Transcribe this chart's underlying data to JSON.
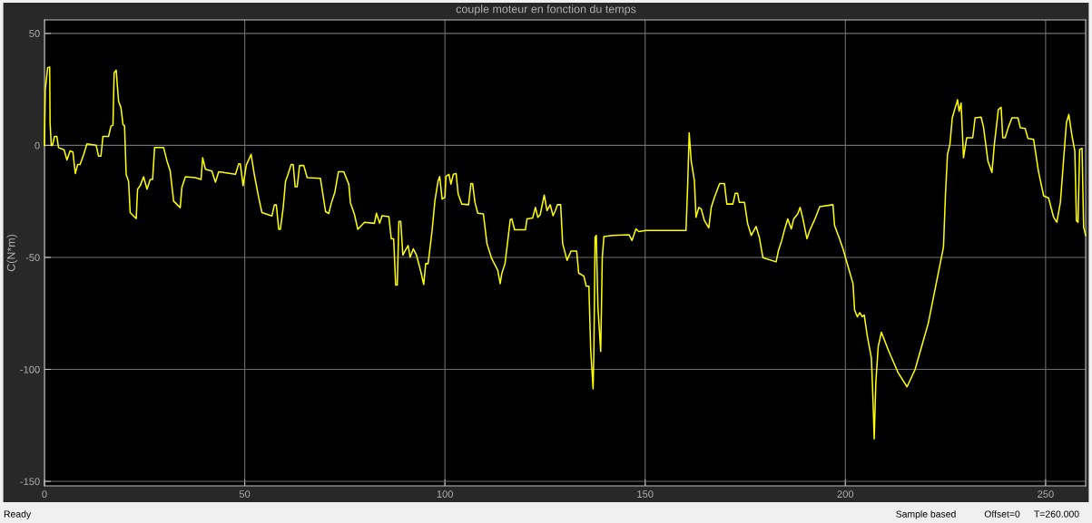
{
  "chart_data": {
    "type": "line",
    "title": "couple moteur en fonction du temps",
    "ylabel": "C(N*m)",
    "annotations": [
      "Ready",
      "Sample based",
      "Offset=0",
      "T=260.000"
    ],
    "xlim": [
      0,
      260
    ],
    "ylim": [
      -152,
      56
    ],
    "xticks": [
      0,
      50,
      100,
      150,
      200,
      250
    ],
    "yticks": [
      -150,
      -100,
      -50,
      0,
      50
    ],
    "grid": true,
    "legend": false,
    "marker": "none",
    "line_style": "solid",
    "series": [
      {
        "color": "#ffff00",
        "x": [
          0,
          0.2,
          0.8,
          1.3,
          1.4,
          1.7,
          2,
          2.5,
          3.1,
          3.5,
          4.9,
          5.6,
          6.4,
          7.1,
          7.7,
          8.3,
          8.9,
          9.8,
          10.6,
          12.9,
          13.5,
          14.1,
          14.6,
          16,
          16.6,
          17.1,
          17.4,
          17.9,
          18.5,
          19.1,
          19.6,
          20,
          20.4,
          21,
          21.4,
          22.9,
          23.25,
          23.9,
          24.75,
          25.6,
          26.4,
          27,
          27.5,
          29.75,
          30.6,
          31.4,
          32.25,
          33.9,
          34.3,
          35.2,
          37.7,
          39.1,
          39.5,
          40.2,
          41.8,
          42.7,
          43.5,
          47.7,
          48.5,
          48.9,
          49.6,
          50.4,
          51.6,
          52.4,
          53.5,
          54.3,
          56.8,
          57.4,
          57.9,
          58.5,
          58.9,
          59.6,
          60.2,
          60.8,
          61.6,
          62.1,
          62.6,
          63.1,
          63.7,
          64.75,
          65.6,
          68.9,
          70.2,
          71,
          71.6,
          72.5,
          73.4,
          74.75,
          76,
          76.4,
          77.4,
          78.25,
          79.9,
          82.4,
          82.9,
          83.7,
          84.3,
          86,
          86.6,
          87.2,
          87.7,
          88.1,
          88.5,
          88.96,
          89.5,
          90.1,
          90.8,
          91.3,
          92.1,
          92.9,
          94,
          94.7,
          95.2,
          95.8,
          96.8,
          97.5,
          98.3,
          98.7,
          99.3,
          100,
          100.25,
          101,
          101.5,
          102.1,
          102.8,
          103.3,
          104.2,
          105.9,
          106.5,
          106.9,
          107.5,
          108.2,
          109.6,
          110.5,
          111.7,
          113.2,
          113.8,
          114.2,
          115,
          115.7,
          116.3,
          116.7,
          117.4,
          120.1,
          120.5,
          121.9,
          122.6,
          123.2,
          123.8,
          124.8,
          125.5,
          126.3,
          127,
          127.6,
          128.1,
          128.9,
          129.4,
          130.5,
          131.5,
          132.9,
          133.4,
          134.7,
          135.3,
          135.95,
          136.4,
          137,
          137.2,
          137.5,
          137.8,
          138.2,
          138.9,
          139.3,
          139.7,
          141.8,
          146,
          146.7,
          147.7,
          148.4,
          150.2,
          160.2,
          160.6,
          161,
          161.5,
          162.3,
          162.7,
          163.4,
          164,
          164.8,
          165.9,
          166.5,
          167.3,
          168.6,
          169.8,
          170.4,
          171.9,
          172.5,
          173.1,
          173.5,
          174.8,
          175.6,
          176.5,
          177.7,
          178.5,
          179.4,
          182.7,
          183.3,
          184.1,
          184.8,
          185.6,
          186.5,
          187.1,
          188.1,
          188.7,
          189.4,
          190.4,
          191.1,
          192.3,
          193.6,
          196.9,
          197.3,
          198.4,
          199.4,
          200.7,
          201.9,
          202.3,
          203,
          203.6,
          204.2,
          204.7,
          205.5,
          206.5,
          206.9,
          207.2,
          207.6,
          208.2,
          209,
          210.7,
          213.2,
          215.4,
          217.4,
          220.7,
          224.5,
          225,
          225.5,
          226.1,
          226.7,
          227.4,
          227.8,
          228,
          228.4,
          228.9,
          229.5,
          230.3,
          231.8,
          232.4,
          233.9,
          234.5,
          235.6,
          236.6,
          237.2,
          238.2,
          238.9,
          239.3,
          239.9,
          240.7,
          241.6,
          243.1,
          243.7,
          244.9,
          245.6,
          247,
          248.2,
          249.5,
          250.75,
          252,
          252.8,
          253.7,
          254.5,
          255.2,
          255.8,
          256.6,
          257.3,
          257.7,
          258.1,
          258.5,
          259.1,
          259.5,
          260
        ],
        "values": [
          0,
          25,
          34.7,
          35,
          10,
          0,
          0,
          4,
          4,
          -1,
          -2,
          -6.5,
          -2.5,
          -3,
          -12.6,
          -8.5,
          -8.5,
          -4,
          0.7,
          0.1,
          -4.8,
          -4.8,
          4,
          4,
          8.6,
          9,
          32.4,
          33.6,
          19.8,
          16.8,
          9.4,
          8.6,
          -13,
          -16,
          -30,
          -32.7,
          -19.6,
          -18,
          -14,
          -19.6,
          -15.2,
          -15.2,
          -1,
          -1,
          -7,
          -11.5,
          -24.9,
          -27.8,
          -18.9,
          -14,
          -14.4,
          -15.2,
          -5.5,
          -10.7,
          -11.5,
          -16.4,
          -11.8,
          -12.9,
          -8.2,
          -8.2,
          -18,
          -8.8,
          -4,
          -13,
          -23.4,
          -30,
          -31.5,
          -26.6,
          -26.6,
          -37.5,
          -37.5,
          -28,
          -16,
          -13,
          -8.5,
          -8.5,
          -18.5,
          -18.5,
          -9,
          -9,
          -14.4,
          -14.7,
          -29.6,
          -30.4,
          -26,
          -21,
          -11.8,
          -11.8,
          -17.4,
          -25.6,
          -30.8,
          -37.5,
          -34.3,
          -34.8,
          -30.3,
          -34.8,
          -31.4,
          -31.8,
          -41.7,
          -41.7,
          -62.4,
          -62.4,
          -33.9,
          -33.9,
          -49,
          -46.9,
          -44.7,
          -49.9,
          -46.2,
          -49,
          -56.5,
          -62.1,
          -52.8,
          -52.8,
          -38,
          -24.7,
          -15.8,
          -13.9,
          -24,
          -23.2,
          -13.9,
          -12.9,
          -17.3,
          -12.9,
          -12.6,
          -21.7,
          -26.2,
          -26.5,
          -17,
          -17,
          -25.4,
          -30.3,
          -30.6,
          -43.9,
          -50.6,
          -55.8,
          -61.7,
          -57.2,
          -52.8,
          -42.5,
          -33.3,
          -32.8,
          -37.7,
          -37.7,
          -32.8,
          -32.4,
          -27.7,
          -32.1,
          -30.9,
          -22.2,
          -29.1,
          -26.5,
          -31.4,
          -29.1,
          -26.5,
          -26.5,
          -43.9,
          -51.3,
          -47.2,
          -47.2,
          -57,
          -58.4,
          -62.9,
          -62.9,
          -91.3,
          -108.7,
          -91.3,
          -41,
          -40.2,
          -72,
          -92,
          -49.9,
          -40.7,
          -40.2,
          -39.9,
          -42.5,
          -37.3,
          -38.5,
          -38,
          -38,
          -18.8,
          5.6,
          -7,
          -15.8,
          -32.1,
          -27.7,
          -28.4,
          -33.6,
          -36.8,
          -27.7,
          -23.2,
          -17,
          -17,
          -26.2,
          -26.2,
          -21.4,
          -21.4,
          -25.4,
          -25.4,
          -35,
          -40.2,
          -36.2,
          -41,
          -50.1,
          -52,
          -46.9,
          -42.5,
          -37.7,
          -32.8,
          -37.3,
          -32.8,
          -30.6,
          -27.7,
          -32.8,
          -41.7,
          -38,
          -33.3,
          -27.4,
          -26.5,
          -35.8,
          -41,
          -46.2,
          -54.3,
          -61.7,
          -73.5,
          -76.5,
          -74.7,
          -76.5,
          -75.7,
          -85.4,
          -95,
          -113.5,
          -131,
          -106,
          -89.8,
          -83.4,
          -91.3,
          -101.6,
          -107.8,
          -100.1,
          -79.4,
          -45.4,
          -21.7,
          -4,
          0.4,
          12.3,
          16.7,
          18.9,
          20.4,
          15.2,
          18.9,
          -5.5,
          3.4,
          3.4,
          12.3,
          12.6,
          8.1,
          -7,
          -12.1,
          0.4,
          16,
          17,
          3.4,
          3.4,
          8.1,
          12.3,
          12.3,
          7.8,
          7.5,
          3.1,
          2.7,
          -11.4,
          -22.5,
          -23.5,
          -32.1,
          -34.3,
          -25.4,
          -6.2,
          10.1,
          13.8,
          4.1,
          -2.5,
          -33.6,
          -34.3,
          -1.8,
          -1.3,
          -36.5,
          -40.2
        ]
      }
    ]
  }
}
